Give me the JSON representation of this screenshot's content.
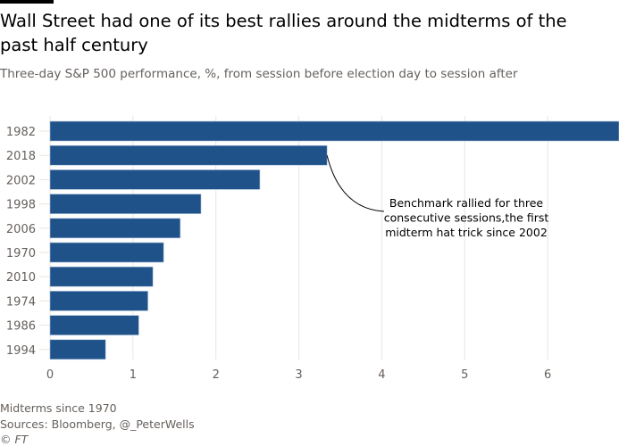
{
  "header": {
    "title": "Wall Street had one of its best rallies around the midterms of the past half century",
    "subtitle": "Three-day S&P 500 performance, %, from session before election day to session after"
  },
  "chart_data": {
    "type": "bar",
    "orientation": "horizontal",
    "categories": [
      "1982",
      "2018",
      "2002",
      "1998",
      "2006",
      "1970",
      "2010",
      "1974",
      "1986",
      "1994"
    ],
    "values": [
      6.86,
      3.34,
      2.53,
      1.82,
      1.57,
      1.37,
      1.24,
      1.18,
      1.07,
      0.67
    ],
    "xlim": [
      0,
      6.86
    ],
    "xticks": [
      "0",
      "1",
      "2",
      "3",
      "4",
      "5",
      "6"
    ],
    "grid": true,
    "bar_color": "#1f5289",
    "annotation": {
      "target": "2018",
      "lines": [
        "Benchmark rallied for three",
        "consecutive sessions,the first",
        "midterm hat trick since 2002"
      ]
    }
  },
  "footer": {
    "note": "Midterms since 1970",
    "sources": "Sources: Bloomberg, @_PeterWells",
    "credit": "© FT"
  }
}
